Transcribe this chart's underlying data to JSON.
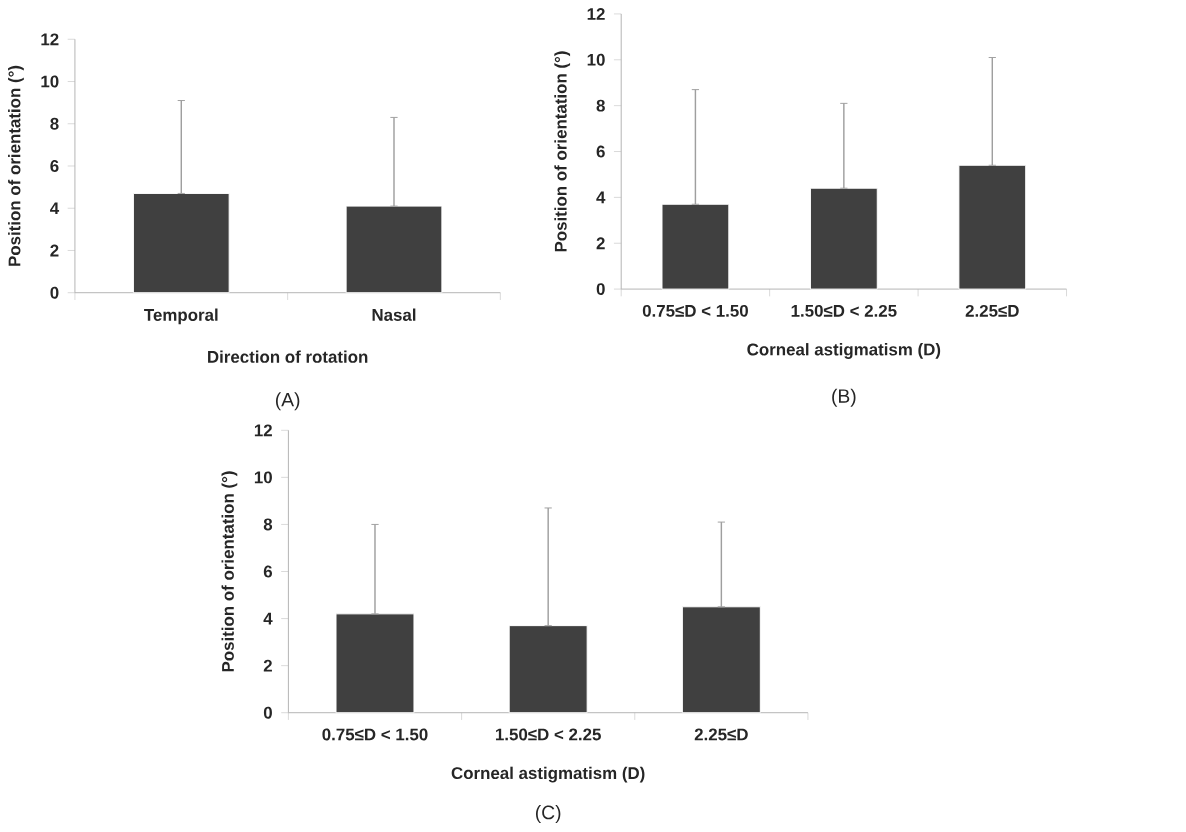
{
  "chart_data": [
    {
      "type": "bar",
      "categories": [
        "Temporal",
        "Nasal"
      ],
      "values": [
        4.7,
        4.1
      ],
      "errors": [
        [
          4.7,
          9.1
        ],
        [
          4.1,
          8.3
        ]
      ],
      "color": "#404040",
      "ylim": [
        0,
        12
      ],
      "yticks": [
        0,
        2,
        4,
        6,
        8,
        10,
        12
      ],
      "xlabel": "Direction of rotation",
      "ylabel": "Position of orientation (°)",
      "annotations": [
        "(A)"
      ]
    },
    {
      "type": "bar",
      "categories": [
        "0.75≤D < 1.50",
        "1.50≤D < 2.25",
        "2.25≤D"
      ],
      "values": [
        3.7,
        4.4,
        5.4
      ],
      "errors": [
        [
          3.7,
          8.7
        ],
        [
          4.4,
          8.1
        ],
        [
          5.4,
          10.1
        ]
      ],
      "color": "#404040",
      "ylim": [
        0,
        12
      ],
      "yticks": [
        0,
        2,
        4,
        6,
        8,
        10,
        12
      ],
      "xlabel": "Corneal astigmatism (D)",
      "ylabel": "Position of orientation (°)",
      "annotations": [
        "(B)"
      ]
    },
    {
      "type": "bar",
      "categories": [
        "0.75≤D < 1.50",
        "1.50≤D < 2.25",
        "2.25≤D"
      ],
      "values": [
        4.2,
        3.7,
        4.5
      ],
      "errors": [
        [
          4.2,
          8.0
        ],
        [
          3.7,
          8.7
        ],
        [
          4.5,
          8.1
        ]
      ],
      "color": "#404040",
      "ylim": [
        0,
        12
      ],
      "yticks": [
        0,
        2,
        4,
        6,
        8,
        10,
        12
      ],
      "xlabel": "Corneal astigmatism (D)",
      "ylabel": "Position of orientation (°)",
      "annotations": [
        "(C)"
      ]
    }
  ]
}
